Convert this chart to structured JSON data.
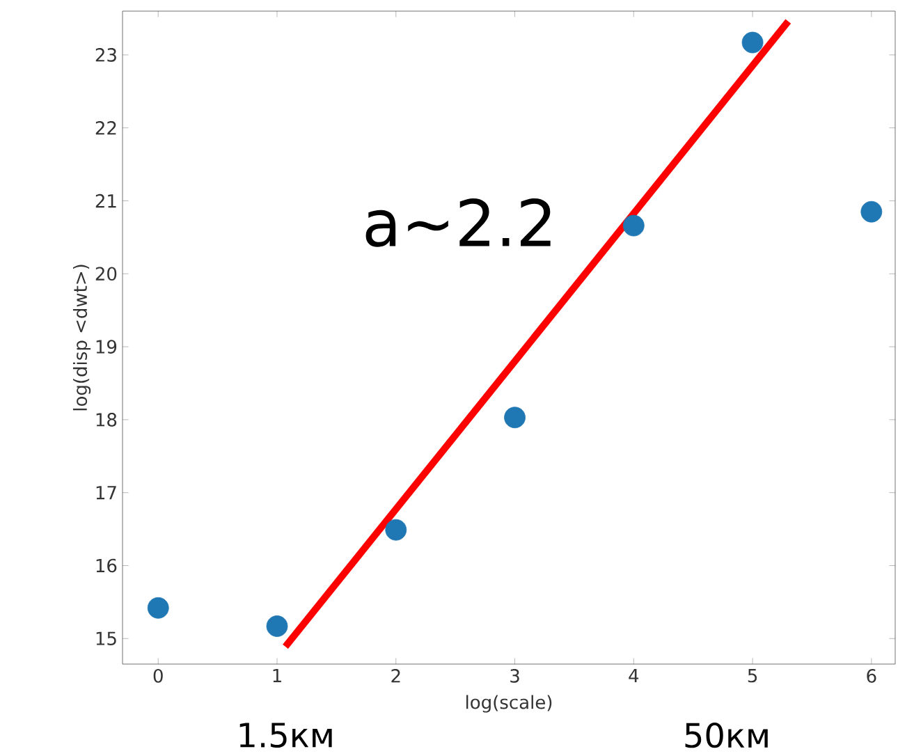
{
  "chart_data": {
    "type": "scatter",
    "xlabel": "log(scale)",
    "ylabel": "log(disp <dwt>)",
    "x": [
      0,
      1,
      2,
      3,
      4,
      5,
      6
    ],
    "series": [
      {
        "color": "#1f77b4",
        "marker": "circle",
        "values": [
          15.42,
          15.17,
          16.49,
          18.03,
          20.66,
          23.17,
          20.85
        ]
      },
      {
        "type": "line",
        "color": "#ff0000",
        "marker": "none",
        "x": [
          1.07,
          5.3
        ],
        "values": [
          14.89,
          23.46
        ]
      }
    ],
    "xlim": [
      -0.3,
      6.2
    ],
    "ylim": [
      14.65,
      23.6
    ],
    "xticks": [
      0,
      1,
      2,
      3,
      4,
      5,
      6
    ],
    "yticks": [
      15,
      16,
      17,
      18,
      19,
      20,
      21,
      22,
      23
    ],
    "annotations": [
      "a~2.2",
      "1.5км",
      "50км"
    ]
  }
}
